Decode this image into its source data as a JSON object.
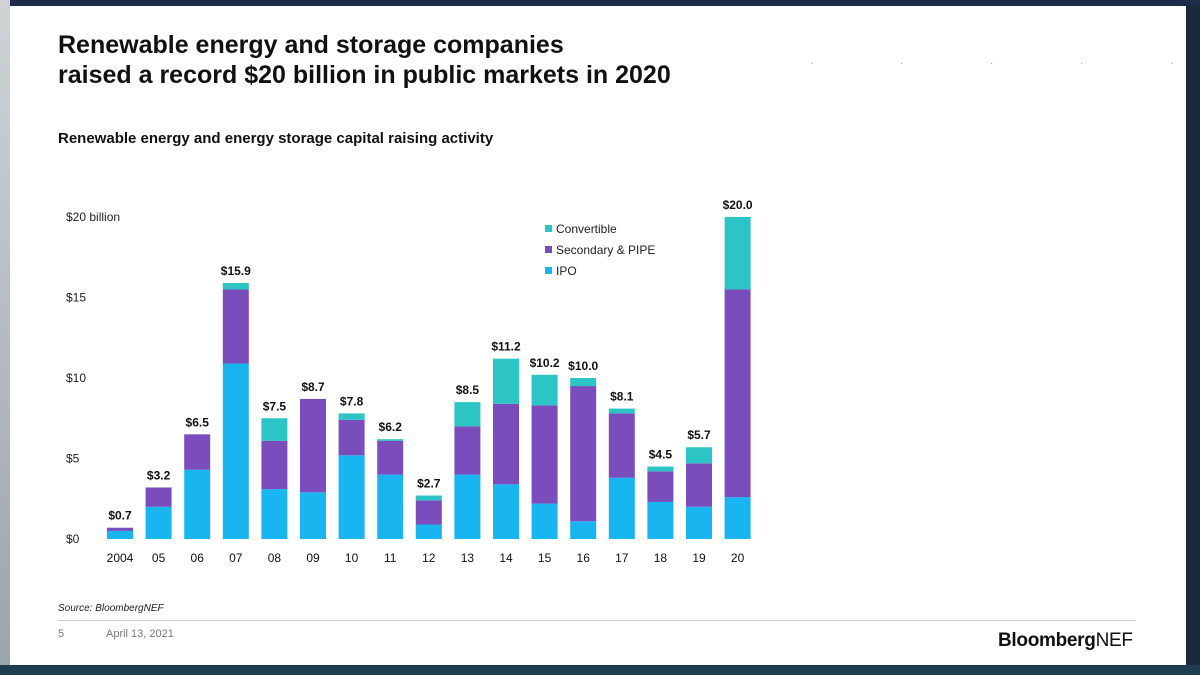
{
  "slide": {
    "title_line1": "Renewable energy and storage companies",
    "title_line2": "raised a record $20 billion in public markets in 2020",
    "source": "Source: BloombergNEF",
    "page_number": "5",
    "date": "April 13, 2021",
    "brand_bold": "Bloomberg",
    "brand_regular": "NEF"
  },
  "chart_data": {
    "type": "bar",
    "stacked": true,
    "title": "Renewable energy and energy storage capital raising activity",
    "ylabel": "$20 billion",
    "xlabel": "",
    "ylim": [
      0,
      20
    ],
    "yticks": [
      0,
      5,
      10,
      15,
      20
    ],
    "ytick_labels": [
      "$0",
      "$5",
      "$10",
      "$15",
      "$20 billion"
    ],
    "categories": [
      "2004",
      "05",
      "06",
      "07",
      "08",
      "09",
      "10",
      "11",
      "12",
      "13",
      "14",
      "15",
      "16",
      "17",
      "18",
      "19",
      "20"
    ],
    "series": [
      {
        "name": "IPO",
        "color": "#19b5f0",
        "values": [
          0.5,
          2.0,
          4.3,
          10.9,
          3.1,
          2.9,
          5.2,
          4.0,
          0.9,
          4.0,
          3.4,
          2.2,
          1.1,
          3.8,
          2.3,
          2.0,
          2.6
        ]
      },
      {
        "name": "Secondary & PIPE",
        "color": "#7a4dbd",
        "values": [
          0.2,
          1.2,
          2.2,
          4.6,
          3.0,
          5.8,
          2.2,
          2.1,
          1.5,
          3.0,
          5.0,
          6.1,
          8.4,
          4.0,
          1.9,
          2.7,
          12.9
        ]
      },
      {
        "name": "Convertible",
        "color": "#2cc4c4",
        "values": [
          0.0,
          0.0,
          0.0,
          0.4,
          1.4,
          0.0,
          0.4,
          0.1,
          0.3,
          1.5,
          2.8,
          1.9,
          0.5,
          0.3,
          0.3,
          1.0,
          4.5
        ]
      }
    ],
    "totals": [
      0.7,
      3.2,
      6.5,
      15.9,
      7.5,
      8.7,
      7.8,
      6.2,
      2.7,
      8.5,
      11.2,
      10.2,
      10.0,
      8.1,
      4.5,
      5.7,
      20.0
    ],
    "total_labels": [
      "$0.7",
      "$3.2",
      "$6.5",
      "$15.9",
      "$7.5",
      "$8.7",
      "$7.8",
      "$6.2",
      "$2.7",
      "$8.5",
      "$11.2",
      "$10.2",
      "$10.0",
      "$8.1",
      "$4.5",
      "$5.7",
      "$20.0"
    ],
    "legend_order": [
      "Convertible",
      "Secondary & PIPE",
      "IPO"
    ],
    "legend_position": "top-right",
    "grid": false
  }
}
